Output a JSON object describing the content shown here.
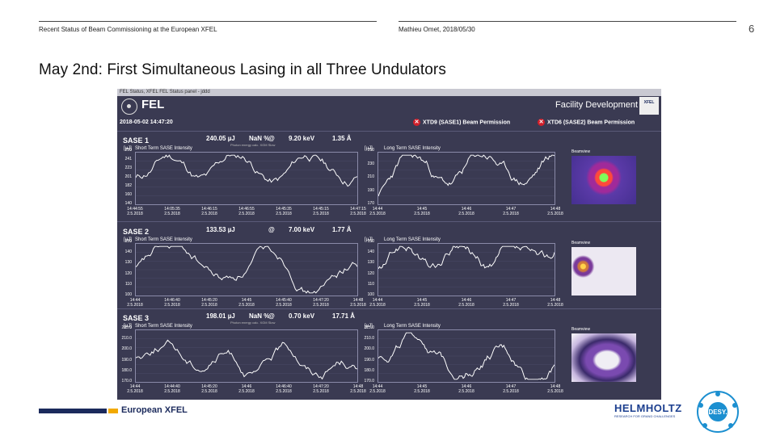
{
  "header": {
    "left_text": "Recent Status of Beam Commissioning at the European XFEL",
    "right_text": "Mathieu Omet, 2018/05/30",
    "page_number": "6"
  },
  "slide": {
    "title": "May 2nd: First Simultaneous Lasing in all Three Undulators"
  },
  "screen": {
    "titlebar": "FEL Status, XFEL FEL Status panel - jddd",
    "app_title": "FEL",
    "facility": "Facility Development",
    "xfel_logo": "XFEL",
    "datetime": "2018-05-02 14:47:20",
    "permissions": [
      {
        "label": "XTD9 (SASE1) Beam Permission"
      },
      {
        "label": "XTD6 (SASE2) Beam Permission"
      }
    ],
    "sections": [
      {
        "name": "SASE 1",
        "energy": "240.05 µJ",
        "percent": "NaN %",
        "at": "@",
        "photon": "9.20 keV",
        "wavelength": "1.35 Å",
        "sub": "Photon energy calc. XGM Slow",
        "short_label": "Short Term SASE Intensity",
        "long_label": "Long Term SASE Intensity",
        "unit": "[µJ]",
        "beamview": "Beamview",
        "short_yticks": [
          "250",
          "241",
          "223",
          "201",
          "182",
          "160",
          "140"
        ],
        "short_xticks": [
          [
            "14:44:55",
            "2.5.2018"
          ],
          [
            "14:05:35",
            "2.5.2018"
          ],
          [
            "14:46:15",
            "2.5.2018"
          ],
          [
            "14:46:55",
            "2.5.2018"
          ],
          [
            "14:45:35",
            "2.5.2018"
          ],
          [
            "14:45:15",
            "2.5.2018"
          ],
          [
            "14:47:15",
            "2.5.2018"
          ]
        ],
        "long_yticks": [
          "250",
          "230",
          "210",
          "190",
          "170"
        ],
        "long_xticks": [
          [
            "14:44",
            "2.5.2018"
          ],
          [
            "14:45",
            "2.5.2018"
          ],
          [
            "14:46",
            "2.5.2018"
          ],
          [
            "14:47",
            "2.5.2018"
          ],
          [
            "14:48",
            "2.5.2018"
          ]
        ]
      },
      {
        "name": "SASE 2",
        "energy": "133.53 µJ",
        "percent": "",
        "at": "@",
        "photon": "7.00 keV",
        "wavelength": "1.77 Å",
        "sub": "",
        "short_label": "Short Term SASE Intensity",
        "long_label": "Long Term SASE Intensity",
        "unit": "[µJ]",
        "beamview": "Beamview",
        "short_yticks": [
          "150",
          "140",
          "130",
          "120",
          "110",
          "100"
        ],
        "short_xticks": [
          [
            "14:44",
            "2.5.2018"
          ],
          [
            "14:46:40",
            "2.5.2018"
          ],
          [
            "14:45:20",
            "2.5.2018"
          ],
          [
            "14:45",
            "2.5.2018"
          ],
          [
            "14:45:40",
            "2.5.2018"
          ],
          [
            "14:47:20",
            "2.5.2018"
          ],
          [
            "14:48",
            "2.5.2018"
          ]
        ],
        "long_yticks": [
          "150",
          "140",
          "130",
          "120",
          "110",
          "100"
        ],
        "long_xticks": [
          [
            "14:44",
            "2.5.2018"
          ],
          [
            "14:45",
            "2.5.2018"
          ],
          [
            "14:46",
            "2.5.2018"
          ],
          [
            "14:47",
            "2.5.2018"
          ],
          [
            "14:48",
            "2.5.2018"
          ]
        ]
      },
      {
        "name": "SASE 3",
        "energy": "198.01 µJ",
        "percent": "NaN %",
        "at": "@",
        "photon": "0.70 keV",
        "wavelength": "17.71 Å",
        "sub": "Photon energy calc. XGM Slow",
        "short_label": "Short Term SASE Intensity",
        "long_label": "Long Term SASE Intensity",
        "unit": "[µJ]",
        "beamview": "Beamview",
        "short_yticks": [
          "215.0",
          "210.0",
          "200.0",
          "190.0",
          "180.0",
          "170.0"
        ],
        "short_xticks": [
          [
            "14:44",
            "2.5.2018"
          ],
          [
            "14:44:40",
            "2.5.2018"
          ],
          [
            "14:45:20",
            "2.5.2018"
          ],
          [
            "14:46",
            "2.5.2018"
          ],
          [
            "14:46:40",
            "2.5.2018"
          ],
          [
            "14:47:20",
            "2.5.2018"
          ],
          [
            "14:48",
            "2.5.2018"
          ]
        ],
        "long_yticks": [
          "215.0",
          "210.0",
          "200.0",
          "190.0",
          "180.0",
          "170.0"
        ],
        "long_xticks": [
          [
            "14:44",
            "2.5.2018"
          ],
          [
            "14:45",
            "2.5.2018"
          ],
          [
            "14:46",
            "2.5.2018"
          ],
          [
            "14:47",
            "2.5.2018"
          ],
          [
            "14:48",
            "2.5.2018"
          ]
        ]
      }
    ]
  },
  "footer": {
    "brand": "European XFEL",
    "helmholtz": "HELMHOLTZ",
    "helmholtz_sub": "RESEARCH FOR GRAND CHALLENGES",
    "desy": "DESY."
  },
  "colors": {
    "panel_bg": "#3a3a52",
    "trace": "#ffffff",
    "permission_red": "#d21f2a",
    "xfel_navy": "#1b2a5c",
    "xfel_orange": "#f2a900"
  }
}
